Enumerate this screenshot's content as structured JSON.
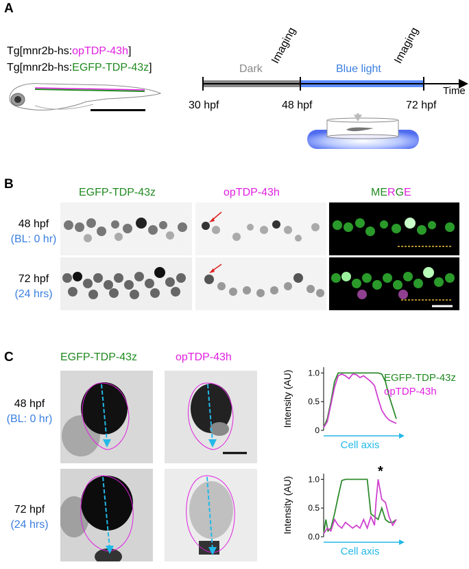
{
  "panels": {
    "a": "A",
    "b": "B",
    "c": "C"
  },
  "panel_a": {
    "genotype1_prefix": "Tg[mnr2b-hs:",
    "genotype1_gene": "opTDP-43h",
    "genotype1_suffix": "]",
    "genotype2_prefix": "Tg[mnr2b-hs:",
    "genotype2_gene": "EGFP-TDP-43z",
    "genotype2_suffix": "]",
    "dark_label": "Dark",
    "blue_label": "Blue light",
    "imaging1": "Imaging",
    "imaging2": "Imaging",
    "time_label": "Time",
    "t1": "30 hpf",
    "t2": "48 hpf",
    "t3": "72 hpf"
  },
  "panel_b": {
    "col1": "EGFP-TDP-43z",
    "col2": "opTDP-43h",
    "merge_m": "M",
    "merge_e": "E",
    "merge_r": "R",
    "merge_g": "G",
    "merge_e2": "E",
    "row1_time": "48 hpf",
    "row1_bl": "(BL: 0 hr)",
    "row2_time": "72 hpf",
    "row2_bl": "(24 hrs)"
  },
  "panel_c": {
    "col1": "EGFP-TDP-43z",
    "col2": "opTDP-43h",
    "row1_time": "48 hpf",
    "row1_bl": "(BL: 0 hr)",
    "row2_time": "72 hpf",
    "row2_bl": "(24 hrs)",
    "legend_green": "EGFP-TDP-43z",
    "legend_magenta": "opTDP-43h",
    "star": "*"
  },
  "colors": {
    "egfp": "#2e8b2e",
    "optdp": "#d040d0",
    "axis_arrow": "#22b8e8",
    "blue_light": "#5b8cff"
  },
  "chart_data": [
    {
      "type": "line",
      "ylabel": "Intensity (AU)",
      "xlabel": "Cell axis",
      "ylim": [
        0,
        1.1
      ],
      "yticks": [
        "0",
        "0.5",
        "1.0"
      ],
      "yticks_values": [
        0,
        0.5,
        1.0
      ],
      "series": [
        {
          "name": "EGFP-TDP-43z",
          "x": [
            0,
            0.05,
            0.1,
            0.15,
            0.2,
            0.25,
            0.3,
            0.4,
            0.5,
            0.6,
            0.7,
            0.75,
            0.8,
            0.85,
            0.9,
            0.95,
            1.0
          ],
          "values": [
            0.05,
            0.2,
            0.5,
            0.85,
            1.0,
            1.0,
            1.0,
            1.0,
            1.0,
            1.0,
            1.0,
            1.0,
            0.98,
            0.85,
            0.6,
            0.4,
            0.2
          ]
        },
        {
          "name": "opTDP-43h",
          "x": [
            0,
            0.05,
            0.1,
            0.15,
            0.2,
            0.25,
            0.3,
            0.35,
            0.4,
            0.45,
            0.5,
            0.55,
            0.6,
            0.65,
            0.7,
            0.75,
            0.8,
            0.85,
            0.9,
            0.95,
            1.0
          ],
          "values": [
            0.05,
            0.15,
            0.45,
            0.75,
            0.95,
            0.98,
            0.95,
            0.9,
            0.98,
            0.97,
            0.92,
            0.95,
            0.9,
            0.85,
            0.78,
            0.55,
            0.35,
            0.25,
            0.18,
            0.15,
            0.12
          ]
        }
      ]
    },
    {
      "type": "line",
      "ylabel": "Intensity (AU)",
      "xlabel": "Cell axis",
      "ylim": [
        0,
        1.1
      ],
      "yticks": [
        "0.0",
        "0.5",
        "1.0"
      ],
      "yticks_values": [
        0,
        0.5,
        1.0
      ],
      "series": [
        {
          "name": "EGFP-TDP-43z",
          "x": [
            0,
            0.03,
            0.06,
            0.1,
            0.15,
            0.2,
            0.25,
            0.3,
            0.35,
            0.4,
            0.5,
            0.55,
            0.6,
            0.65,
            0.7,
            0.75,
            0.8,
            0.85,
            0.9,
            0.95,
            1.0
          ],
          "values": [
            0.05,
            0.3,
            0.1,
            0.15,
            0.4,
            0.7,
            0.98,
            1.0,
            1.0,
            1.0,
            1.0,
            1.0,
            1.0,
            0.4,
            0.35,
            0.3,
            0.5,
            0.3,
            0.25,
            0.25,
            0.3
          ]
        },
        {
          "name": "opTDP-43h",
          "x": [
            0,
            0.05,
            0.1,
            0.15,
            0.2,
            0.25,
            0.3,
            0.35,
            0.4,
            0.45,
            0.5,
            0.55,
            0.6,
            0.65,
            0.7,
            0.72,
            0.75,
            0.8,
            0.85,
            0.9,
            0.95,
            1.0
          ],
          "values": [
            0.05,
            0.15,
            0.1,
            0.3,
            0.2,
            0.15,
            0.25,
            0.2,
            0.15,
            0.2,
            0.15,
            0.3,
            0.15,
            0.35,
            0.2,
            0.6,
            1.0,
            0.65,
            0.6,
            0.35,
            0.2,
            0.3
          ]
        }
      ]
    }
  ]
}
